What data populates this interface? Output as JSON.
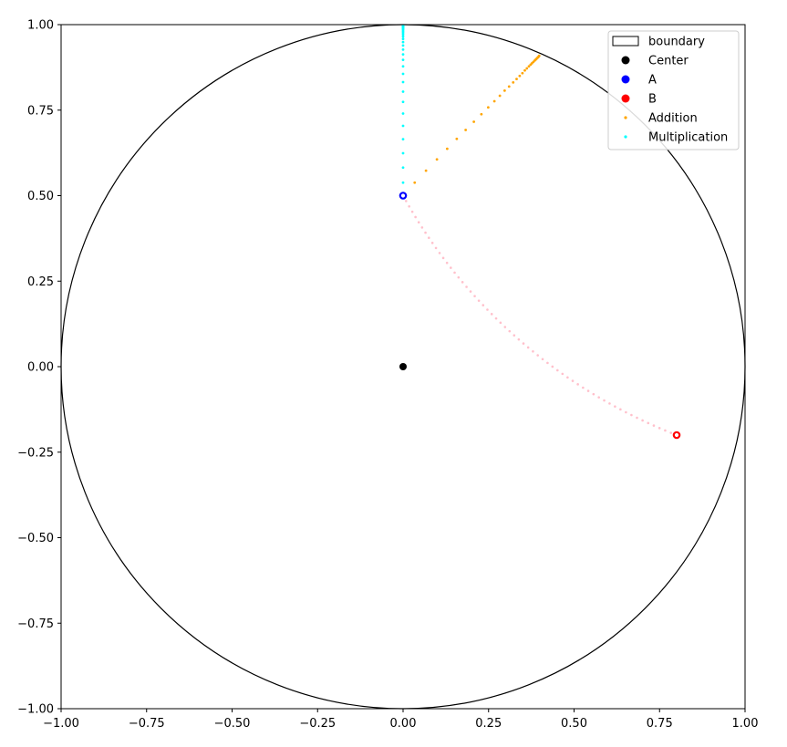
{
  "chart_data": {
    "type": "scatter",
    "title": "",
    "xlabel": "",
    "ylabel": "",
    "xlim": [
      -1.0,
      1.0
    ],
    "ylim": [
      -1.0,
      1.0
    ],
    "grid": false,
    "xticks": [
      "−1.00",
      "−0.75",
      "−0.50",
      "−0.25",
      "0.00",
      "0.25",
      "0.50",
      "0.75",
      "1.00"
    ],
    "yticks": [
      "−1.00",
      "−0.75",
      "−0.50",
      "−0.25",
      "0.00",
      "0.25",
      "0.50",
      "0.75",
      "1.00"
    ],
    "xtick_values": [
      -1.0,
      -0.75,
      -0.5,
      -0.25,
      0.0,
      0.25,
      0.5,
      0.75,
      1.0
    ],
    "ytick_values": [
      -1.0,
      -0.75,
      -0.5,
      -0.25,
      0.0,
      0.25,
      0.5,
      0.75,
      1.0
    ],
    "boundary": {
      "center": [
        0,
        0
      ],
      "radius": 1.0,
      "color": "#000000"
    },
    "center_point": {
      "x": 0.0,
      "y": 0.0,
      "color": "#000000"
    },
    "point_a": {
      "x": 0.0,
      "y": 0.5,
      "color": "#0000ff"
    },
    "point_b": {
      "x": 0.8,
      "y": -0.2,
      "color": "#ff0000"
    },
    "geodesic": {
      "color": "#ffc0cb",
      "from": [
        0.0,
        0.5
      ],
      "to": [
        0.8,
        -0.2
      ],
      "count": 60
    },
    "series": [
      {
        "name": "Addition",
        "color": "#ffa500",
        "points": [
          [
            0.034,
            0.538
          ],
          [
            0.067,
            0.573
          ],
          [
            0.099,
            0.606
          ],
          [
            0.129,
            0.637
          ],
          [
            0.157,
            0.666
          ],
          [
            0.183,
            0.692
          ],
          [
            0.207,
            0.716
          ],
          [
            0.229,
            0.738
          ],
          [
            0.249,
            0.758
          ],
          [
            0.267,
            0.776
          ],
          [
            0.283,
            0.792
          ],
          [
            0.297,
            0.807
          ],
          [
            0.31,
            0.819
          ],
          [
            0.322,
            0.831
          ],
          [
            0.332,
            0.841
          ],
          [
            0.341,
            0.85
          ],
          [
            0.349,
            0.858
          ],
          [
            0.356,
            0.866
          ],
          [
            0.362,
            0.872
          ],
          [
            0.368,
            0.878
          ],
          [
            0.373,
            0.883
          ],
          [
            0.377,
            0.887
          ],
          [
            0.381,
            0.891
          ],
          [
            0.385,
            0.895
          ],
          [
            0.388,
            0.898
          ],
          [
            0.39,
            0.9
          ],
          [
            0.393,
            0.903
          ],
          [
            0.395,
            0.905
          ],
          [
            0.397,
            0.907
          ],
          [
            0.398,
            0.909
          ]
        ]
      },
      {
        "name": "Multiplication",
        "color": "#00ffff",
        "points": [
          [
            0.0,
            0.538
          ],
          [
            0.0,
            0.582
          ],
          [
            0.0,
            0.624
          ],
          [
            0.0,
            0.665
          ],
          [
            0.0,
            0.704
          ],
          [
            0.0,
            0.74
          ],
          [
            0.0,
            0.774
          ],
          [
            0.0,
            0.804
          ],
          [
            0.0,
            0.832
          ],
          [
            0.0,
            0.856
          ],
          [
            0.0,
            0.878
          ],
          [
            0.0,
            0.897
          ],
          [
            0.0,
            0.913
          ],
          [
            0.0,
            0.927
          ],
          [
            0.0,
            0.939
          ],
          [
            0.0,
            0.949
          ],
          [
            0.0,
            0.958
          ],
          [
            0.0,
            0.965
          ],
          [
            0.0,
            0.971
          ],
          [
            0.0,
            0.976
          ],
          [
            0.0,
            0.98
          ],
          [
            0.0,
            0.984
          ],
          [
            0.0,
            0.987
          ],
          [
            0.0,
            0.989
          ],
          [
            0.0,
            0.991
          ],
          [
            0.0,
            0.993
          ],
          [
            0.0,
            0.994
          ],
          [
            0.0,
            0.995
          ],
          [
            0.0,
            0.996
          ],
          [
            0.0,
            0.997
          ]
        ]
      }
    ],
    "legend": {
      "placement": "top-right",
      "entries": [
        {
          "label": "boundary",
          "marker": "patch",
          "color": "#000000"
        },
        {
          "label": "Center",
          "marker": "dot",
          "color": "#000000"
        },
        {
          "label": "A",
          "marker": "dot",
          "color": "#0000ff"
        },
        {
          "label": "B",
          "marker": "dot",
          "color": "#ff0000"
        },
        {
          "label": "Addition",
          "marker": "small",
          "color": "#ffa500"
        },
        {
          "label": "Multiplication",
          "marker": "small",
          "color": "#00ffff"
        }
      ]
    }
  }
}
